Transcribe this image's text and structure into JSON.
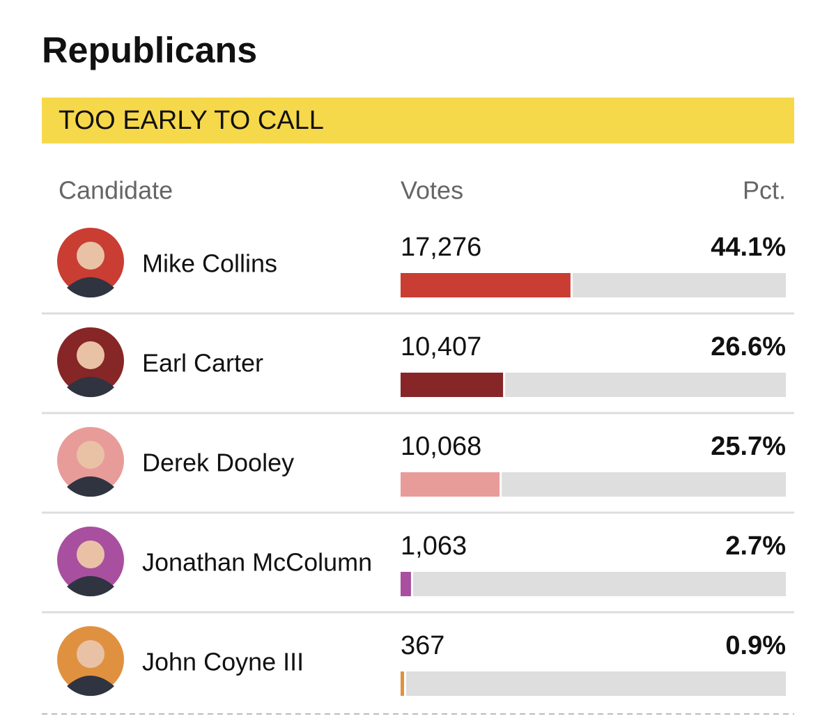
{
  "header": {
    "title": "Republicans",
    "status": "TOO EARLY TO CALL"
  },
  "table": {
    "columns": [
      "Candidate",
      "Votes",
      "Pct."
    ],
    "xlim": [
      0,
      100
    ],
    "rows": [
      {
        "name": "Mike Collins",
        "votes": 17276,
        "votes_label": "17,276",
        "pct": 44.1,
        "pct_label": "44.1%",
        "color": "#c93d33"
      },
      {
        "name": "Earl Carter",
        "votes": 10407,
        "votes_label": "10,407",
        "pct": 26.6,
        "pct_label": "26.6%",
        "color": "#862626"
      },
      {
        "name": "Derek Dooley",
        "votes": 10068,
        "votes_label": "10,068",
        "pct": 25.7,
        "pct_label": "25.7%",
        "color": "#e89c9a"
      },
      {
        "name": "Jonathan McColumn",
        "votes": 1063,
        "votes_label": "1,063",
        "pct": 2.7,
        "pct_label": "2.7%",
        "color": "#a8509f"
      },
      {
        "name": "John Coyne III",
        "votes": 367,
        "votes_label": "367",
        "pct": 0.9,
        "pct_label": "0.9%",
        "color": "#e0913f"
      }
    ]
  }
}
